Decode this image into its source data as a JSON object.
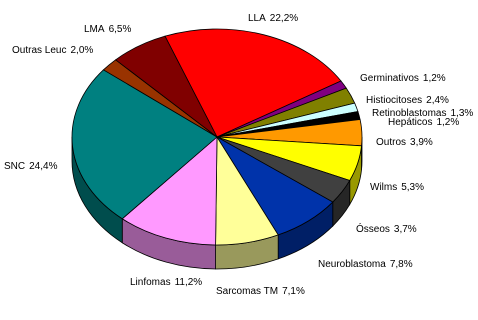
{
  "chart_data": {
    "type": "pie",
    "categories": [
      "LLA",
      "Germinativos",
      "Histiocitoses",
      "Retinoblastomas",
      "Hepáticos",
      "Outros",
      "Wilms",
      "Ósseos",
      "Neuroblastoma",
      "Sarcomas TM",
      "Linfomas",
      "SNC",
      "Outras Leuc",
      "LMA"
    ],
    "values": [
      22.2,
      1.2,
      2.4,
      1.3,
      1.2,
      3.9,
      5.3,
      3.7,
      7.8,
      7.1,
      11.2,
      24.4,
      2.0,
      6.5
    ],
    "value_labels": [
      "22,2%",
      "1,2%",
      "2,4%",
      "1,3%",
      "1,2%",
      "3,9%",
      "5,3%",
      "3,7%",
      "7,8%",
      "7,1%",
      "11,2%",
      "24,4%",
      "2,0%",
      "6,5%"
    ],
    "colors": [
      "#ff0000",
      "#800080",
      "#808000",
      "#ccffff",
      "#000000",
      "#ff9900",
      "#ffff00",
      "#404040",
      "#0033aa",
      "#ffff99",
      "#ff99ff",
      "#008080",
      "#993300",
      "#800000"
    ]
  }
}
